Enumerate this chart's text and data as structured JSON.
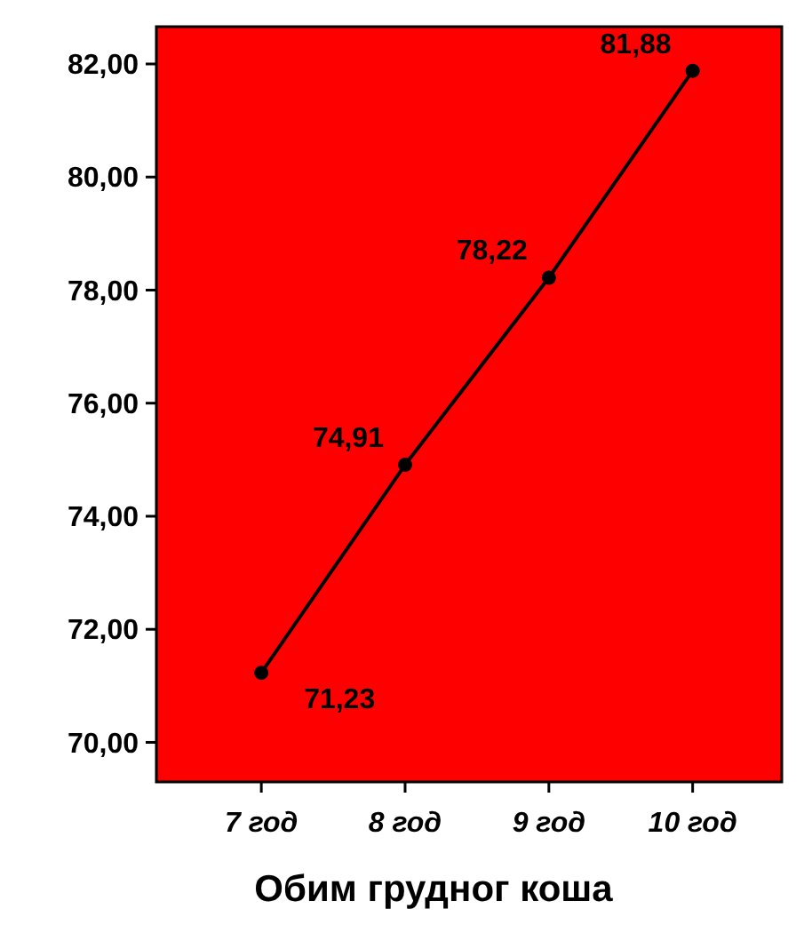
{
  "chart_data": {
    "type": "line",
    "xlabel": "Обим грудног коша",
    "categories": [
      "7 год",
      "8 год",
      "9 год",
      "10 год"
    ],
    "series": [
      {
        "color": "#000000",
        "values": [
          71.23,
          74.91,
          78.22,
          81.88
        ],
        "value_labels": [
          "71,23",
          "74,91",
          "78,22",
          "81,88"
        ]
      }
    ],
    "ylim": [
      69.3,
      82.66
    ],
    "yticks": [
      {
        "value": 70,
        "label": "70,00"
      },
      {
        "value": 72,
        "label": "72,00"
      },
      {
        "value": 74,
        "label": "74,00"
      },
      {
        "value": 76,
        "label": "76,00"
      },
      {
        "value": 78,
        "label": "78,00"
      },
      {
        "value": 80,
        "label": "80,00"
      },
      {
        "value": 82,
        "label": "82,00"
      }
    ],
    "marker": "circle",
    "line_style": "solid"
  }
}
